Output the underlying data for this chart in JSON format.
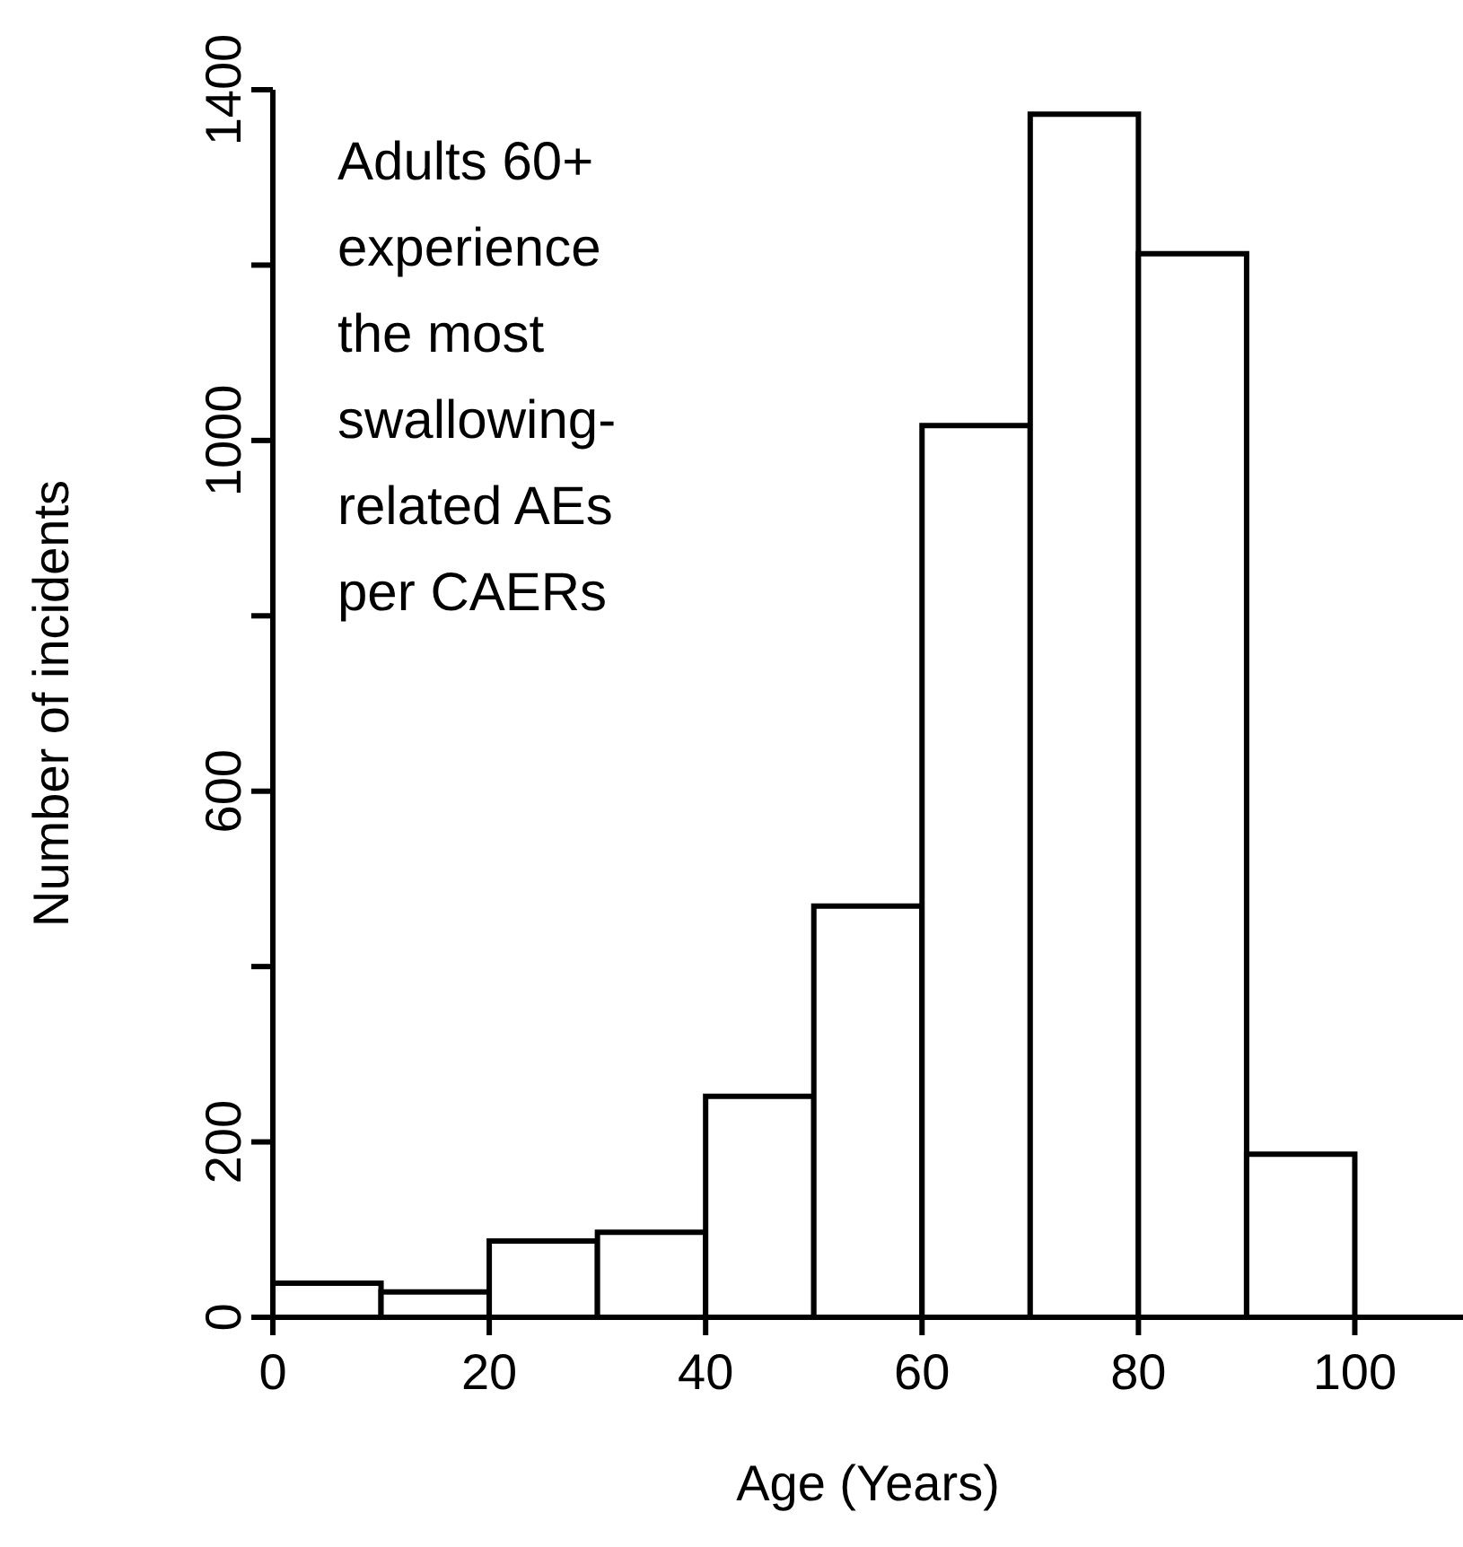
{
  "chart_data": {
    "type": "histogram",
    "xlabel": "Age (Years)",
    "ylabel": "Number of incidents",
    "bins": [
      0,
      10,
      20,
      30,
      40,
      50,
      60,
      70,
      80,
      90,
      100
    ],
    "values": [
      39,
      29,
      87,
      97,
      252,
      469,
      1017,
      1372,
      1213,
      186
    ],
    "color": "#ffffff",
    "xlim": [
      0,
      110
    ],
    "xticks": [
      0,
      20,
      40,
      60,
      80,
      100
    ],
    "ylim": [
      0,
      1400
    ],
    "yticks": [
      0,
      200,
      {
        "value": 400,
        "label": null
      },
      600,
      {
        "value": 800,
        "label": null
      },
      1000,
      {
        "value": 1200,
        "label": null
      },
      1400
    ],
    "grid": false,
    "annotations": [
      "Adults 60+\nexperience\nthe most\nswallowing-\nrelated AEs\nper CAERs"
    ]
  }
}
